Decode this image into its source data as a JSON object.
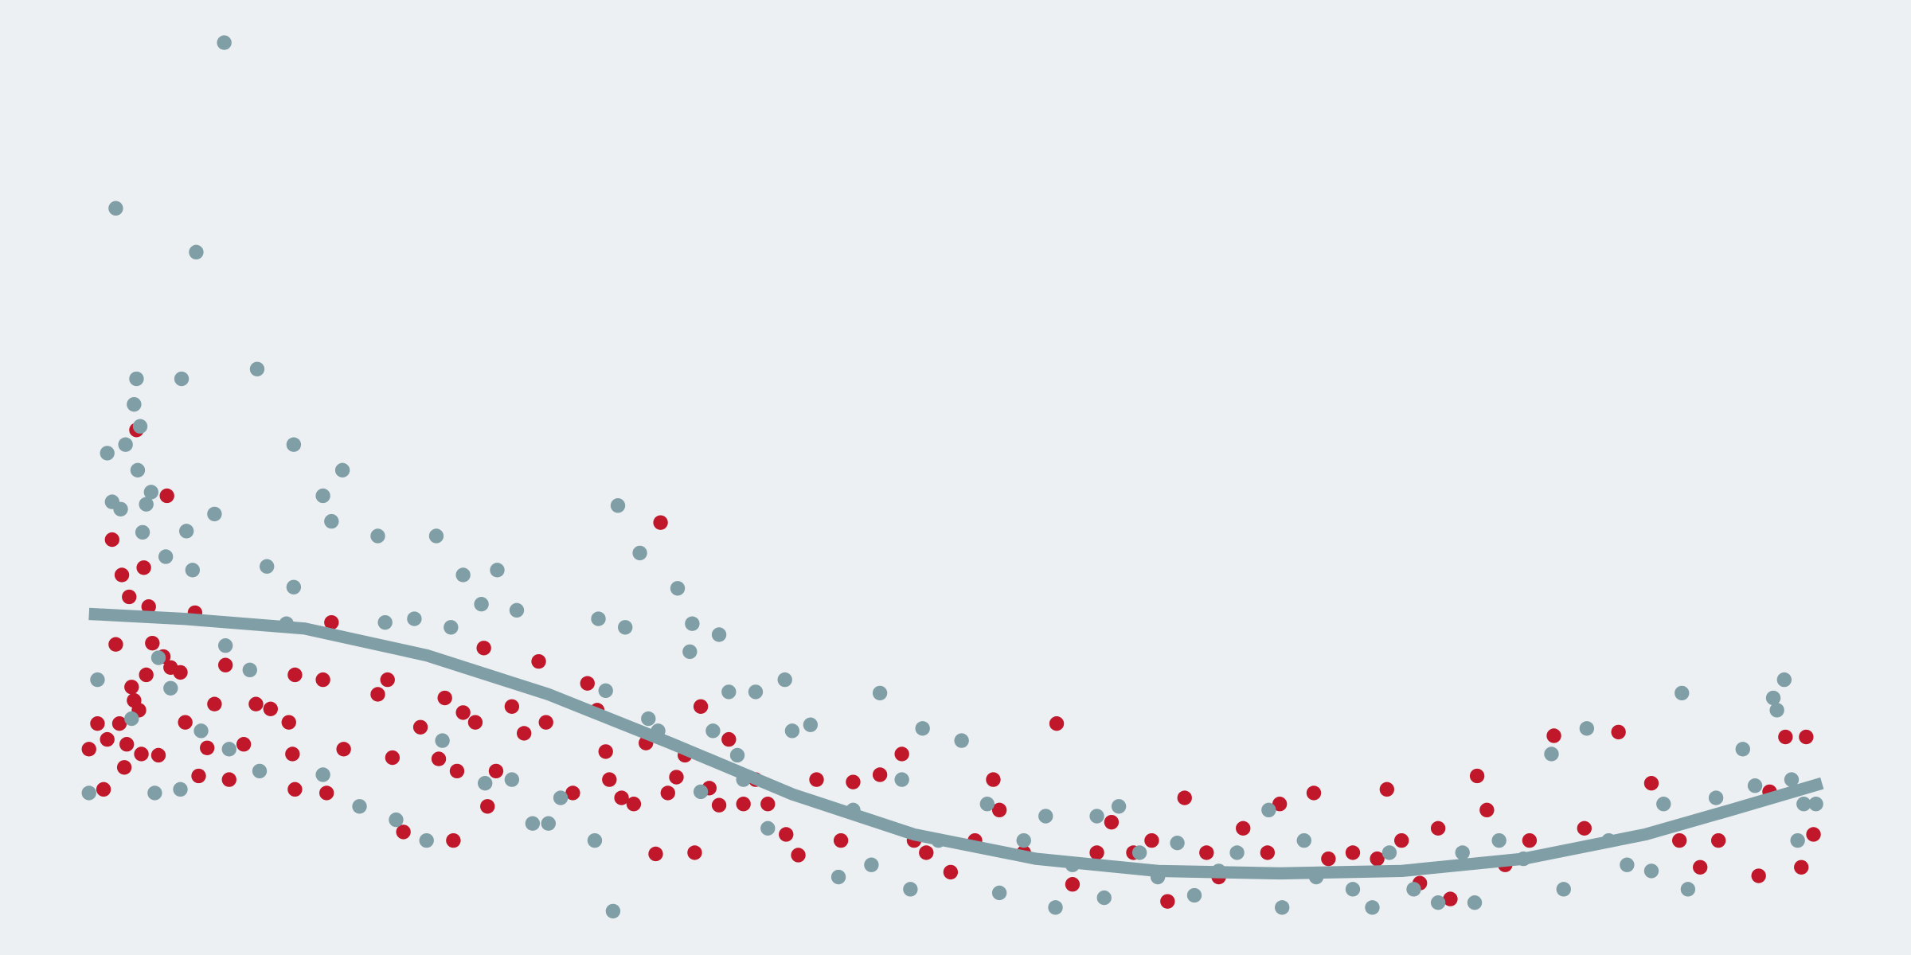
{
  "chart_data": {
    "type": "scatter",
    "xlim": [
      0,
      1568
    ],
    "ylim": [
      784,
      0
    ],
    "background": "#edf0f3",
    "series": [
      {
        "color": "#c0182a",
        "style": "dots",
        "x": [
          73,
          80,
          85,
          88,
          92,
          95,
          98,
          100,
          102,
          104,
          106,
          108,
          110,
          112,
          114,
          116,
          118,
          120,
          122,
          125,
          130,
          134,
          137,
          140,
          148,
          152,
          160,
          163,
          170,
          176,
          185,
          188,
          200,
          210,
          222,
          237,
          240,
          242,
          242,
          265,
          268,
          272,
          282,
          310,
          318,
          322,
          331,
          345,
          360,
          365,
          372,
          375,
          380,
          390,
          397,
          400,
          407,
          420,
          430,
          442,
          448,
          470,
          482,
          490,
          497,
          500,
          510,
          520,
          530,
          538,
          542,
          548,
          555,
          562,
          570,
          575,
          582,
          590,
          598,
          610,
          620,
          630,
          645,
          655,
          670,
          690,
          700,
          722,
          740,
          750,
          760,
          780,
          800,
          815,
          820,
          840,
          867,
          880,
          900,
          912,
          930,
          945,
          958,
          972,
          990,
          1000,
          1020,
          1040,
          1050,
          1078,
          1090,
          1110,
          1130,
          1138,
          1150,
          1165,
          1180,
          1190,
          1212,
          1220,
          1235,
          1255,
          1275,
          1300,
          1328,
          1355,
          1378,
          1395,
          1410,
          1443,
          1452,
          1465,
          1478,
          1482,
          1488
        ],
        "values": [
          615,
          594,
          648,
          607,
          443,
          529,
          594,
          472,
          630,
          611,
          490,
          564,
          575,
          353,
          583,
          619,
          466,
          554,
          498,
          528,
          620,
          539,
          407,
          548,
          552,
          593,
          503,
          637,
          614,
          578,
          546,
          640,
          611,
          578,
          582,
          593,
          619,
          554,
          648,
          558,
          651,
          511,
          615,
          570,
          558,
          622,
          683,
          597,
          623,
          573,
          690,
          633,
          585,
          593,
          532,
          662,
          633,
          580,
          602,
          543,
          593,
          651,
          561,
          583,
          617,
          640,
          655,
          660,
          610,
          701,
          429,
          651,
          638,
          620,
          700,
          580,
          647,
          661,
          607,
          660,
          640,
          660,
          685,
          702,
          640,
          690,
          642,
          636,
          619,
          690,
          700,
          716,
          690,
          640,
          665,
          700,
          594,
          726,
          700,
          675,
          700,
          690,
          740,
          655,
          700,
          720,
          680,
          700,
          660,
          651,
          705,
          700,
          705,
          648,
          690,
          725,
          680,
          738,
          637,
          665,
          710,
          690,
          604,
          680,
          601,
          643,
          690,
          712,
          690,
          719,
          650,
          605,
          712,
          605,
          685
        ]
      },
      {
        "color": "#7f9ea6",
        "style": "dots",
        "x": [
          73,
          80,
          88,
          92,
          95,
          99,
          103,
          108,
          110,
          112,
          113,
          115,
          117,
          120,
          124,
          127,
          130,
          136,
          140,
          148,
          149,
          153,
          158,
          161,
          165,
          176,
          184,
          185,
          188,
          205,
          211,
          213,
          219,
          235,
          241,
          241,
          265,
          265,
          272,
          281,
          295,
          310,
          316,
          325,
          340,
          350,
          358,
          363,
          370,
          380,
          395,
          398,
          408,
          420,
          424,
          437,
          450,
          460,
          488,
          491,
          497,
          503,
          507,
          513,
          525,
          532,
          540,
          556,
          566,
          568,
          575,
          585,
          590,
          598,
          605,
          610,
          620,
          630,
          644,
          650,
          665,
          688,
          700,
          715,
          722,
          740,
          747,
          757,
          770,
          789,
          810,
          820,
          840,
          858,
          866,
          880,
          900,
          906,
          918,
          935,
          950,
          966,
          980,
          1000,
          1015,
          1041,
          1052,
          1070,
          1080,
          1110,
          1126,
          1140,
          1160,
          1180,
          1200,
          1210,
          1230,
          1250,
          1273,
          1283,
          1302,
          1320,
          1335,
          1355,
          1365,
          1380,
          1385,
          1408,
          1430,
          1440,
          1455,
          1458,
          1464,
          1470,
          1475,
          1480,
          1490
        ],
        "values": [
          651,
          558,
          372,
          412,
          171,
          418,
          365,
          590,
          332,
          311,
          386,
          350,
          437,
          414,
          404,
          651,
          540,
          457,
          565,
          648,
          311,
          436,
          468,
          207,
          600,
          422,
          35,
          530,
          615,
          550,
          303,
          633,
          465,
          512,
          365,
          482,
          407,
          636,
          428,
          386,
          662,
          440,
          511,
          673,
          508,
          690,
          440,
          608,
          515,
          472,
          496,
          643,
          468,
          640,
          501,
          676,
          676,
          655,
          690,
          508,
          567,
          748,
          415,
          515,
          454,
          590,
          600,
          483,
          535,
          512,
          650,
          600,
          521,
          568,
          620,
          640,
          568,
          680,
          558,
          600,
          595,
          720,
          665,
          710,
          569,
          640,
          730,
          598,
          690,
          608,
          660,
          733,
          690,
          670,
          745,
          710,
          670,
          737,
          662,
          700,
          720,
          692,
          735,
          715,
          700,
          665,
          745,
          690,
          720,
          730,
          745,
          700,
          730,
          741,
          700,
          741,
          690,
          705,
          619,
          730,
          598,
          690,
          710,
          715,
          660,
          569,
          730,
          655,
          615,
          645,
          573,
          583,
          558,
          640,
          690,
          660,
          660
        ]
      },
      {
        "color": "#7f9ea6",
        "style": "line",
        "x": [
          73,
          150,
          250,
          350,
          450,
          550,
          650,
          750,
          850,
          950,
          1050,
          1150,
          1250,
          1350,
          1420,
          1495
        ],
        "values": [
          504,
          508,
          516,
          538,
          570,
          610,
          652,
          685,
          705,
          715,
          717,
          715,
          705,
          685,
          665,
          643
        ]
      }
    ]
  }
}
